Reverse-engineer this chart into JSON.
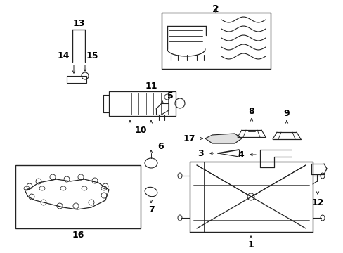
{
  "background_color": "#ffffff",
  "line_color": "#222222",
  "label_color": "#000000",
  "fig_width": 4.89,
  "fig_height": 3.6,
  "dpi": 100
}
